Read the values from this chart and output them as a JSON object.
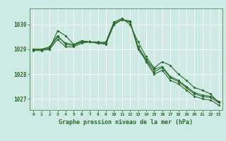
{
  "background_color": "#ceeae4",
  "grid_color": "#ffffff",
  "line_color": "#2d6b2d",
  "xlabel": "Graphe pression niveau de la mer (hPa)",
  "xlim": [
    -0.5,
    23.5
  ],
  "ylim": [
    1026.55,
    1030.65
  ],
  "yticks": [
    1027,
    1028,
    1029,
    1030
  ],
  "xticks": [
    0,
    1,
    2,
    3,
    4,
    5,
    6,
    7,
    8,
    9,
    10,
    11,
    12,
    13,
    14,
    15,
    16,
    17,
    18,
    19,
    20,
    21,
    22,
    23
  ],
  "xtick_labels": [
    "0",
    "1",
    "2",
    "3",
    "4",
    "5",
    "6",
    "7",
    "8",
    "9",
    "10",
    "11",
    "12",
    "13",
    "14",
    "15",
    "16",
    "17",
    "18",
    "19",
    "20",
    "21",
    "22",
    "23"
  ],
  "series": [
    {
      "x": [
        0,
        1,
        2,
        3,
        4,
        5,
        6,
        7,
        8,
        9,
        10,
        11,
        12,
        13,
        14,
        15,
        16,
        17,
        18,
        19,
        20,
        21,
        22,
        23
      ],
      "y": [
        1029.0,
        1029.0,
        1029.1,
        1029.55,
        1029.2,
        1029.15,
        1029.3,
        1029.3,
        1029.25,
        1029.2,
        1030.0,
        1030.2,
        1030.15,
        1029.0,
        1028.55,
        1028.1,
        1028.25,
        1027.85,
        1027.7,
        1027.45,
        1027.2,
        1027.1,
        1027.05,
        1026.85
      ]
    },
    {
      "x": [
        0,
        1,
        2,
        3,
        4,
        5,
        6,
        7,
        8,
        9,
        10,
        11,
        12,
        13,
        14,
        15,
        16,
        17,
        18,
        19,
        20,
        21,
        22,
        23
      ],
      "y": [
        1029.0,
        1029.0,
        1029.05,
        1029.5,
        1029.25,
        1029.2,
        1029.35,
        1029.3,
        1029.3,
        1029.25,
        1030.05,
        1030.2,
        1030.1,
        1029.1,
        1028.6,
        1028.2,
        1028.3,
        1027.9,
        1027.75,
        1027.5,
        1027.25,
        1027.15,
        1027.1,
        1026.9
      ]
    },
    {
      "x": [
        0,
        1,
        2,
        3,
        4,
        5,
        6,
        7,
        8,
        9,
        10,
        11,
        12,
        13,
        14,
        15,
        16,
        17,
        18,
        19,
        20,
        21,
        22,
        23
      ],
      "y": [
        1028.95,
        1028.95,
        1029.0,
        1029.75,
        1029.55,
        1029.2,
        1029.3,
        1029.3,
        1029.25,
        1029.3,
        1030.1,
        1030.25,
        1030.0,
        1029.3,
        1028.7,
        1028.25,
        1028.5,
        1028.35,
        1028.0,
        1027.75,
        1027.45,
        1027.35,
        1027.2,
        1026.85
      ]
    },
    {
      "x": [
        0,
        1,
        2,
        3,
        4,
        5,
        6,
        7,
        8,
        9,
        10,
        11,
        12,
        13,
        14,
        15,
        16,
        17,
        18,
        19,
        20,
        21,
        22,
        23
      ],
      "y": [
        1029.0,
        1029.0,
        1029.0,
        1029.4,
        1029.1,
        1029.1,
        1029.25,
        1029.3,
        1029.25,
        1029.25,
        1030.0,
        1030.2,
        1030.1,
        1029.1,
        1028.5,
        1028.0,
        1028.15,
        1027.75,
        1027.6,
        1027.35,
        1027.1,
        1027.0,
        1026.95,
        1026.75
      ]
    }
  ]
}
